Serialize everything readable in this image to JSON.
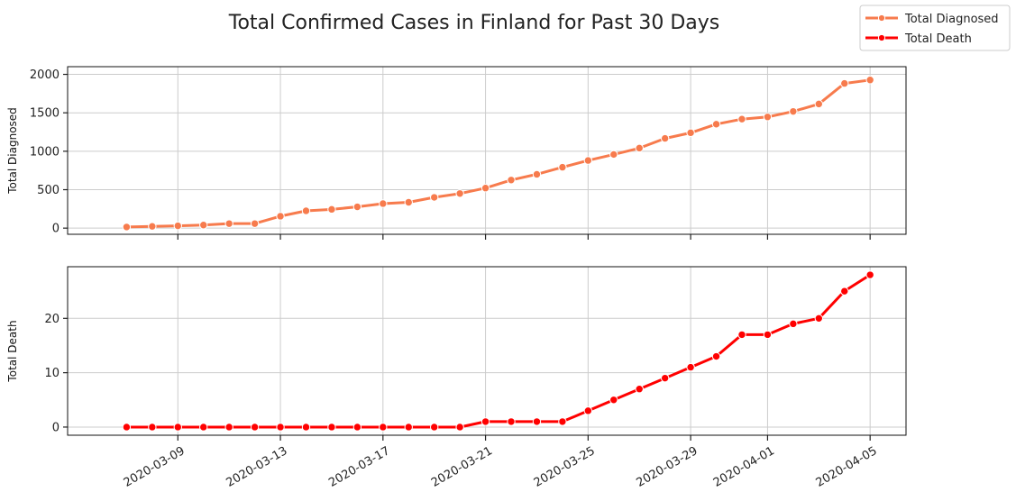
{
  "chart_data": {
    "title": "Total Confirmed Cases in Finland for Past 30 Days",
    "type": "line",
    "legend": {
      "placement": "top-right",
      "entries": [
        {
          "name": "Total Diagnosed",
          "color": "#f77b4d"
        },
        {
          "name": "Total Death",
          "color": "#ff0000"
        }
      ]
    },
    "x": [
      "2020-03-07",
      "2020-03-08",
      "2020-03-09",
      "2020-03-10",
      "2020-03-11",
      "2020-03-12",
      "2020-03-13",
      "2020-03-14",
      "2020-03-15",
      "2020-03-16",
      "2020-03-17",
      "2020-03-18",
      "2020-03-19",
      "2020-03-20",
      "2020-03-21",
      "2020-03-22",
      "2020-03-23",
      "2020-03-24",
      "2020-03-25",
      "2020-03-26",
      "2020-03-27",
      "2020-03-28",
      "2020-03-29",
      "2020-03-30",
      "2020-03-31",
      "2020-04-01",
      "2020-04-02",
      "2020-04-03",
      "2020-04-04",
      "2020-04-05"
    ],
    "x_tick_labels": [
      "2020-03-09",
      "2020-03-13",
      "2020-03-17",
      "2020-03-21",
      "2020-03-25",
      "2020-03-29",
      "2020-04-01",
      "2020-04-05"
    ],
    "panels": [
      {
        "ylabel": "Total Diagnosed",
        "series_name": "Total Diagnosed",
        "color": "#f77b4d",
        "ylim": [
          -80,
          2100
        ],
        "yticks": [
          0,
          500,
          1000,
          1500,
          2000
        ],
        "values": [
          15,
          23,
          30,
          40,
          59,
          59,
          155,
          225,
          244,
          277,
          319,
          336,
          400,
          450,
          521,
          626,
          700,
          792,
          880,
          958,
          1041,
          1167,
          1240,
          1352,
          1418,
          1446,
          1518,
          1615,
          1882,
          1927
        ]
      },
      {
        "ylabel": "Total Death",
        "series_name": "Total Death",
        "color": "#ff0000",
        "ylim": [
          -1.5,
          29.5
        ],
        "yticks": [
          0,
          10,
          20
        ],
        "values": [
          0,
          0,
          0,
          0,
          0,
          0,
          0,
          0,
          0,
          0,
          0,
          0,
          0,
          0,
          1,
          1,
          1,
          1,
          3,
          5,
          7,
          9,
          11,
          13,
          17,
          17,
          19,
          20,
          25,
          28
        ]
      }
    ],
    "grid": true
  }
}
